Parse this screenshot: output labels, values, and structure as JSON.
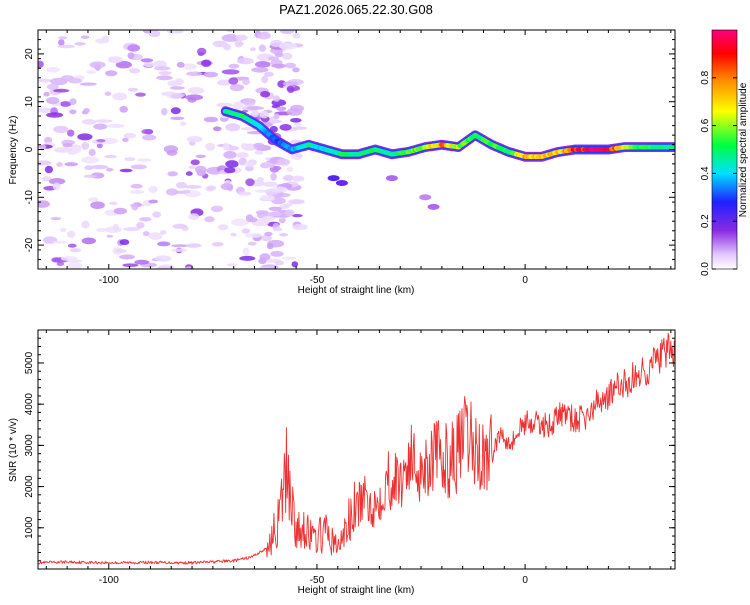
{
  "chart_data": [
    {
      "type": "heatmap",
      "title": "PAZ1.2026.065.22.30.G08",
      "xlabel": "Height of straight line (km)",
      "ylabel": "Frequency (Hz)",
      "xlim": [
        -117,
        36
      ],
      "ylim": [
        -25,
        25
      ],
      "xticks": [
        -100,
        -50,
        0
      ],
      "xtick_labels": [
        "-100",
        "-50",
        "0"
      ],
      "yticks": [
        20,
        10,
        0,
        -10,
        -20
      ],
      "ytick_labels": [
        "20",
        "10",
        "0",
        "-10",
        "-20"
      ],
      "colorbar": {
        "label": "Normalized spectral amplitude",
        "range": [
          0,
          1
        ],
        "ticks": [
          0.0,
          0.2,
          0.4,
          0.6,
          0.8
        ],
        "tick_labels": [
          "0.0",
          "0.2",
          "0.4",
          "0.6",
          "0.8"
        ]
      },
      "ridge": {
        "x": [
          -72,
          -68,
          -64,
          -60,
          -56,
          -52,
          -48,
          -44,
          -40,
          -36,
          -32,
          -28,
          -24,
          -20,
          -16,
          -12,
          -8,
          -4,
          0,
          4,
          8,
          12,
          16,
          20,
          24,
          28,
          32,
          36
        ],
        "freq": [
          8,
          7,
          5,
          2,
          0,
          1,
          0,
          -1,
          -1,
          0,
          -1,
          -0.5,
          0.5,
          1,
          0.5,
          3,
          1,
          -0.5,
          -1.5,
          -1.5,
          -0.5,
          0,
          0,
          0,
          0.5,
          0.5,
          0.5,
          0.5
        ],
        "amplitude": [
          0.45,
          0.5,
          0.4,
          0.3,
          0.35,
          0.45,
          0.4,
          0.5,
          0.45,
          0.5,
          0.45,
          0.55,
          0.6,
          0.8,
          0.6,
          0.5,
          0.55,
          0.5,
          0.75,
          0.7,
          0.7,
          0.85,
          0.95,
          0.9,
          0.65,
          0.55,
          0.5,
          0.45
        ]
      }
    },
    {
      "type": "line",
      "xlabel": "Height of straight line (km)",
      "ylabel": "SNR (10 * v/v)",
      "xlim": [
        -117,
        36
      ],
      "ylim": [
        0,
        5800
      ],
      "xticks": [
        -100,
        -50,
        0
      ],
      "xtick_labels": [
        "-100",
        "-50",
        "0"
      ],
      "yticks": [
        1000,
        2000,
        3000,
        4000,
        5000
      ],
      "ytick_labels": [
        "1000",
        "2000",
        "3000",
        "4000",
        "5000"
      ],
      "color": "#ee3030",
      "series": [
        {
          "name": "SNR",
          "x": [
            -117,
            -110,
            -100,
            -90,
            -80,
            -70,
            -66,
            -62,
            -59,
            -57,
            -55,
            -53,
            -51,
            -48,
            -45,
            -42,
            -39,
            -36,
            -33,
            -30,
            -28,
            -25,
            -22,
            -20,
            -17,
            -14,
            -12,
            -10,
            -8,
            -6,
            -3,
            0,
            3,
            6,
            9,
            12,
            15,
            18,
            21,
            24,
            27,
            30,
            33,
            36
          ],
          "y": [
            150,
            170,
            150,
            160,
            150,
            200,
            280,
            500,
            1200,
            2600,
            800,
            1100,
            700,
            900,
            500,
            1200,
            1700,
            1500,
            2200,
            2100,
            2700,
            2400,
            2800,
            2600,
            2700,
            3200,
            2900,
            2700,
            2800,
            3300,
            3100,
            3600,
            3500,
            3500,
            3800,
            3600,
            3700,
            4100,
            4300,
            4500,
            4700,
            4900,
            5200,
            5300
          ]
        }
      ]
    }
  ]
}
